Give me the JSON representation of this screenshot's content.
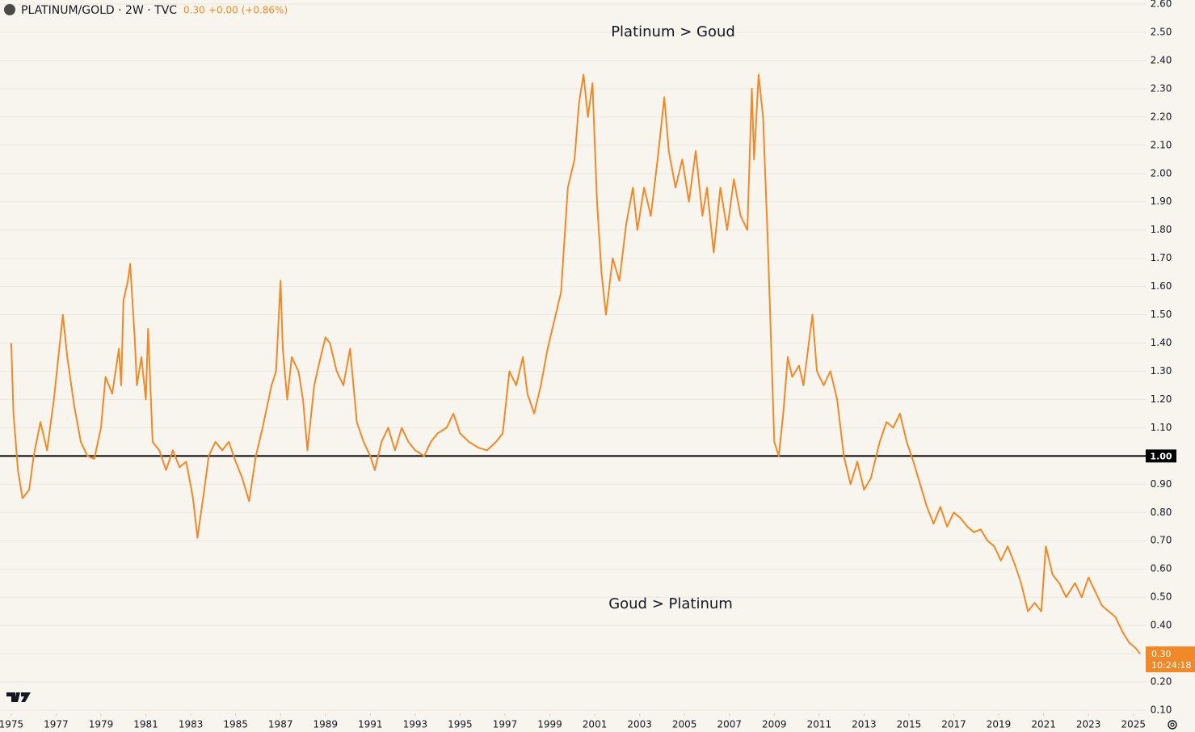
{
  "header": {
    "symbol": "PLATINUM/GOLD · 2W · TVC",
    "last": "0.30",
    "change": "+0.00 (+0.86%)"
  },
  "chart_data": {
    "type": "line",
    "annotations": [
      "Platinum > Goud",
      "Goud > Platinum"
    ],
    "color": "#f0892a",
    "xlim": [
      1974.5,
      2025.55
    ],
    "ylim": [
      0.1,
      2.6
    ],
    "grid": true,
    "xticks": [
      1975,
      1977,
      1979,
      1981,
      1983,
      1985,
      1987,
      1989,
      1991,
      1993,
      1995,
      1997,
      1999,
      2001,
      2003,
      2005,
      2007,
      2009,
      2011,
      2013,
      2015,
      2017,
      2019,
      2021,
      2023,
      2025
    ],
    "yticks": [
      {
        "value": 0.1,
        "label": "0.10"
      },
      {
        "value": 0.2,
        "label": "0.20"
      },
      {
        "value": 0.3,
        "label": "0.30"
      },
      {
        "value": 0.4,
        "label": "0.40"
      },
      {
        "value": 0.5,
        "label": "0.50"
      },
      {
        "value": 0.6,
        "label": "0.60"
      },
      {
        "value": 0.7,
        "label": "0.70"
      },
      {
        "value": 0.8,
        "label": "0.80"
      },
      {
        "value": 0.9,
        "label": "0.90"
      },
      {
        "value": 1.1,
        "label": "1.10"
      },
      {
        "value": 1.2,
        "label": "1.20"
      },
      {
        "value": 1.3,
        "label": "1.30"
      },
      {
        "value": 1.4,
        "label": "1.40"
      },
      {
        "value": 1.5,
        "label": "1.50"
      },
      {
        "value": 1.6,
        "label": "1.60"
      },
      {
        "value": 1.7,
        "label": "1.70"
      },
      {
        "value": 1.8,
        "label": "1.80"
      },
      {
        "value": 1.9,
        "label": "1.90"
      },
      {
        "value": 2.0,
        "label": "2.00"
      },
      {
        "value": 2.1,
        "label": "2.10"
      },
      {
        "value": 2.2,
        "label": "2.20"
      },
      {
        "value": 2.3,
        "label": "2.30"
      },
      {
        "value": 2.4,
        "label": "2.40"
      },
      {
        "value": 2.5,
        "label": "2.50"
      },
      {
        "value": 2.6,
        "label": "2.60"
      }
    ],
    "reference_line": {
      "value": 1,
      "label": "1.00"
    },
    "last_label": {
      "value": 0.3,
      "label": "0.30",
      "countdown": "10:24:18"
    },
    "x": [
      1975.0,
      1975.1,
      1975.3,
      1975.5,
      1975.8,
      1976.0,
      1976.3,
      1976.6,
      1976.9,
      1977.3,
      1977.5,
      1977.8,
      1978.1,
      1978.4,
      1978.7,
      1979.0,
      1979.2,
      1979.5,
      1979.8,
      1979.9,
      1980.0,
      1980.2,
      1980.3,
      1980.5,
      1980.6,
      1980.8,
      1981.0,
      1981.1,
      1981.3,
      1981.6,
      1981.9,
      1982.2,
      1982.5,
      1982.8,
      1983.1,
      1983.3,
      1983.6,
      1983.8,
      1984.1,
      1984.4,
      1984.7,
      1985.0,
      1985.3,
      1985.6,
      1985.9,
      1986.2,
      1986.6,
      1986.8,
      1987.0,
      1987.1,
      1987.3,
      1987.5,
      1987.8,
      1988.0,
      1988.2,
      1988.5,
      1988.7,
      1989.0,
      1989.2,
      1989.5,
      1989.8,
      1990.1,
      1990.4,
      1990.7,
      1991.0,
      1991.2,
      1991.5,
      1991.8,
      1992.1,
      1992.4,
      1992.7,
      1993.0,
      1993.4,
      1993.7,
      1994.0,
      1994.4,
      1994.7,
      1995.0,
      1995.4,
      1995.8,
      1996.2,
      1996.6,
      1996.9,
      1997.2,
      1997.5,
      1997.8,
      1998.0,
      1998.3,
      1998.6,
      1998.9,
      1999.2,
      1999.5,
      1999.8,
      2000.1,
      2000.3,
      2000.5,
      2000.7,
      2000.9,
      2001.1,
      2001.3,
      2001.5,
      2001.8,
      2002.1,
      2002.4,
      2002.7,
      2002.9,
      2003.2,
      2003.5,
      2003.8,
      2004.1,
      2004.3,
      2004.6,
      2004.9,
      2005.2,
      2005.5,
      2005.8,
      2006.0,
      2006.3,
      2006.6,
      2006.9,
      2007.2,
      2007.5,
      2007.8,
      2008.0,
      2008.1,
      2008.3,
      2008.5,
      2008.7,
      2008.9,
      2009.0,
      2009.2,
      2009.4,
      2009.6,
      2009.8,
      2010.1,
      2010.3,
      2010.7,
      2010.9,
      2011.2,
      2011.5,
      2011.8,
      2012.1,
      2012.4,
      2012.7,
      2013.0,
      2013.3,
      2013.7,
      2014.0,
      2014.3,
      2014.6,
      2014.9,
      2015.2,
      2015.5,
      2015.8,
      2016.1,
      2016.4,
      2016.7,
      2017.0,
      2017.3,
      2017.6,
      2017.9,
      2018.2,
      2018.5,
      2018.8,
      2019.1,
      2019.4,
      2019.7,
      2020.0,
      2020.3,
      2020.6,
      2020.9,
      2021.1,
      2021.4,
      2021.7,
      2022.0,
      2022.4,
      2022.7,
      2023.0,
      2023.3,
      2023.6,
      2023.9,
      2024.2,
      2024.5,
      2024.8,
      2025.1,
      2025.3
    ],
    "values": [
      1.4,
      1.15,
      0.95,
      0.85,
      0.88,
      1.0,
      1.12,
      1.02,
      1.2,
      1.5,
      1.35,
      1.18,
      1.05,
      1.0,
      0.99,
      1.1,
      1.28,
      1.22,
      1.38,
      1.25,
      1.55,
      1.62,
      1.68,
      1.42,
      1.25,
      1.35,
      1.2,
      1.45,
      1.05,
      1.02,
      0.95,
      1.02,
      0.96,
      0.98,
      0.85,
      0.71,
      0.88,
      1.0,
      1.05,
      1.02,
      1.05,
      0.98,
      0.92,
      0.84,
      1.0,
      1.1,
      1.25,
      1.3,
      1.62,
      1.38,
      1.2,
      1.35,
      1.3,
      1.2,
      1.02,
      1.25,
      1.32,
      1.42,
      1.4,
      1.3,
      1.25,
      1.38,
      1.12,
      1.05,
      1.0,
      0.95,
      1.05,
      1.1,
      1.02,
      1.1,
      1.05,
      1.02,
      1.0,
      1.05,
      1.08,
      1.1,
      1.15,
      1.08,
      1.05,
      1.03,
      1.02,
      1.05,
      1.08,
      1.3,
      1.25,
      1.35,
      1.22,
      1.15,
      1.25,
      1.38,
      1.48,
      1.58,
      1.95,
      2.05,
      2.25,
      2.35,
      2.2,
      2.32,
      1.9,
      1.65,
      1.5,
      1.7,
      1.62,
      1.82,
      1.95,
      1.8,
      1.95,
      1.85,
      2.05,
      2.27,
      2.08,
      1.95,
      2.05,
      1.9,
      2.08,
      1.85,
      1.95,
      1.72,
      1.95,
      1.8,
      1.98,
      1.85,
      1.8,
      2.3,
      2.05,
      2.35,
      2.2,
      1.78,
      1.3,
      1.05,
      1.0,
      1.15,
      1.35,
      1.28,
      1.32,
      1.25,
      1.5,
      1.3,
      1.25,
      1.3,
      1.2,
      1.0,
      0.9,
      0.98,
      0.88,
      0.92,
      1.05,
      1.12,
      1.1,
      1.15,
      1.05,
      0.98,
      0.9,
      0.82,
      0.76,
      0.82,
      0.75,
      0.8,
      0.78,
      0.75,
      0.73,
      0.74,
      0.7,
      0.68,
      0.63,
      0.68,
      0.62,
      0.55,
      0.45,
      0.48,
      0.45,
      0.68,
      0.58,
      0.55,
      0.5,
      0.55,
      0.5,
      0.57,
      0.52,
      0.47,
      0.45,
      0.43,
      0.38,
      0.34,
      0.32,
      0.3
    ]
  }
}
